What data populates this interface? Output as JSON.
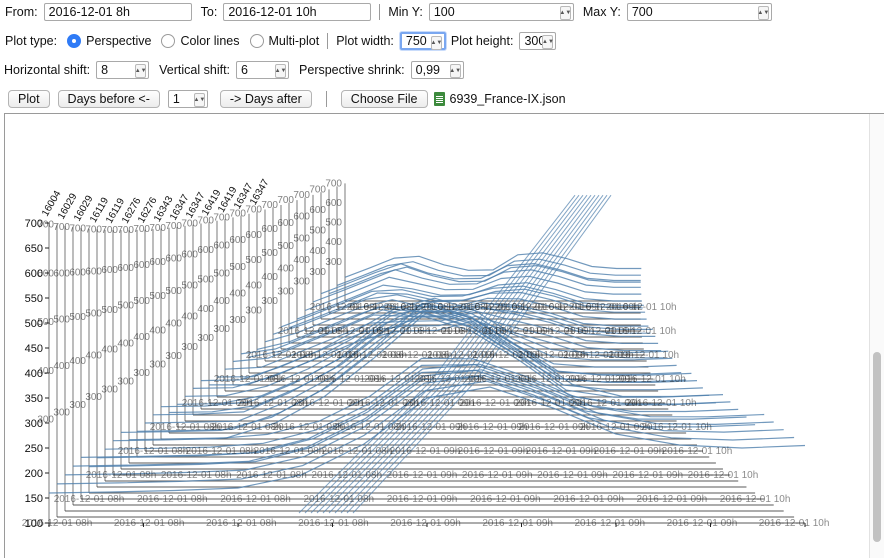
{
  "controls": {
    "from_label": "From:",
    "from_value": "2016-12-01 8h",
    "to_label": "To:",
    "to_value": "2016-12-01 10h",
    "miny_label": "Min Y:",
    "miny_value": "100",
    "maxy_label": "Max Y:",
    "maxy_value": "700",
    "plot_type_label": "Plot type:",
    "plot_types": [
      "Perspective",
      "Color lines",
      "Multi-plot"
    ],
    "plot_type_selected": "Perspective",
    "plot_width_label": "Plot width:",
    "plot_width_value": "750",
    "plot_height_label": "Plot height:",
    "plot_height_value": "300",
    "hshift_label": "Horizontal shift:",
    "hshift_value": "8",
    "vshift_label": "Vertical shift:",
    "vshift_value": "6",
    "pshrink_label": "Perspective shrink:",
    "pshrink_value": "0,99",
    "plot_button": "Plot",
    "days_before_button": "Days before <-",
    "days_value": "1",
    "days_after_button": "-> Days after",
    "choose_file_button": "Choose File",
    "file_name": "6939_France-IX.json"
  },
  "colors": {
    "line": "#4f7fad",
    "axis": "#222222",
    "grid": "#888888",
    "focus": "#7aa7f0",
    "radio": "#2f7bf6"
  },
  "chart_data": {
    "type": "line",
    "title": "",
    "projection": "perspective",
    "ylim": [
      100,
      700
    ],
    "y_ticks": [
      100,
      150,
      200,
      250,
      300,
      350,
      400,
      450,
      500,
      550,
      600,
      650,
      700
    ],
    "x_ticks": [
      "2016-12-01 08h",
      "2016-12-01 08h",
      "2016-12-01 08h",
      "2016-12-01 08h",
      "2016-12-01 09h",
      "2016-12-01 09h",
      "2016-12-01 09h",
      "2016-12-01 09h",
      "2016-12-01 10h"
    ],
    "series_labels": [
      "16004",
      "16029",
      "16029",
      "16119",
      "16119",
      "16276",
      "16276",
      "16343",
      "16347",
      "16347",
      "16419",
      "16419",
      "16347",
      "16347"
    ],
    "layers": 38,
    "series_shape": [
      160,
      162,
      165,
      170,
      190,
      240,
      320,
      330,
      300,
      260,
      250,
      250,
      255
    ]
  }
}
